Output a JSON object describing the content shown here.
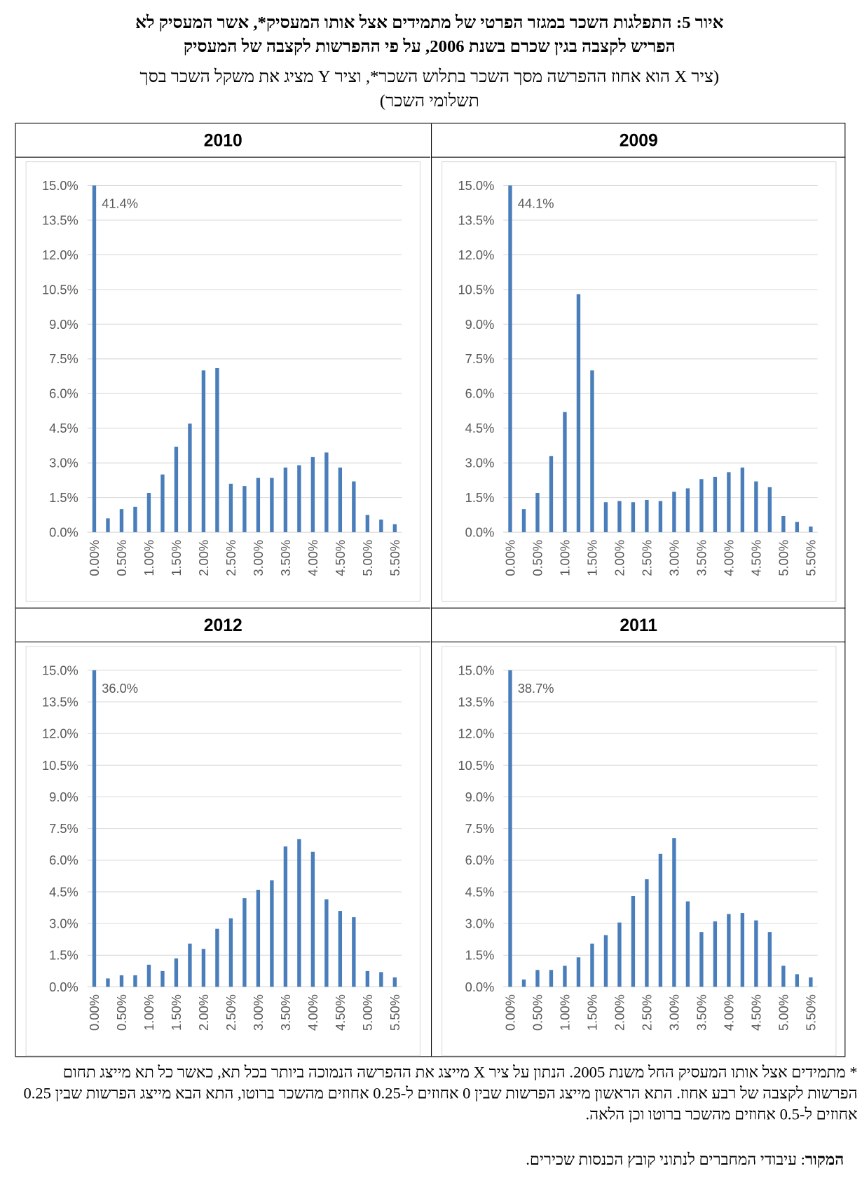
{
  "title_lines": [
    "איור 5: התפלגות השכר במגזר הפרטי של מתמידים אצל אותו המעסיק*, אשר המעסיק לא",
    "הפריש לקצבה בגין שכרם בשנת 2006, על פי ההפרשות לקצבה של המעסיק"
  ],
  "subtitle_lines": [
    "(ציר X הוא אחוז ההפרשה מסך השכר בתלוש השכר*, וציר Y מציג את משקל השכר בסך",
    "תשלומי השכר)"
  ],
  "chart_data": [
    {
      "type": "bar",
      "title": "2009",
      "color": "#4a7ebb",
      "grid": true,
      "categories": [
        "0.00%",
        null,
        "0.50%",
        null,
        "1.00%",
        null,
        "1.50%",
        null,
        "2.00%",
        null,
        "2.50%",
        null,
        "3.00%",
        null,
        "3.50%",
        null,
        "4.00%",
        null,
        "4.50%",
        null,
        "5.00%",
        null,
        "5.50%"
      ],
      "values": [
        44.1,
        1.0,
        1.7,
        3.3,
        5.2,
        10.3,
        7.0,
        1.3,
        1.35,
        1.3,
        1.4,
        1.35,
        1.75,
        1.9,
        2.3,
        2.4,
        2.6,
        2.8,
        2.2,
        1.95,
        0.7,
        0.45,
        0.25
      ],
      "value_labels": [
        "44.1%",
        null,
        null,
        null,
        null,
        null,
        null,
        null,
        null,
        null,
        null,
        null,
        null,
        null,
        null,
        null,
        null,
        null,
        null,
        null,
        null,
        null,
        null
      ],
      "ylim": [
        0,
        15
      ],
      "yticks": [
        {
          "value": 0,
          "label": "0.0%"
        },
        {
          "value": 1.5,
          "label": "1.5%"
        },
        {
          "value": 3,
          "label": "3.0%"
        },
        {
          "value": 4.5,
          "label": "4.5%"
        },
        {
          "value": 6,
          "label": "6.0%"
        },
        {
          "value": 7.5,
          "label": "7.5%"
        },
        {
          "value": 9,
          "label": "9.0%"
        },
        {
          "value": 10.5,
          "label": "10.5%"
        },
        {
          "value": 12,
          "label": "12.0%"
        },
        {
          "value": 13.5,
          "label": "13.5%"
        },
        {
          "value": 15,
          "label": "15.0%"
        }
      ]
    },
    {
      "type": "bar",
      "title": "2010",
      "color": "#4a7ebb",
      "grid": true,
      "categories": [
        "0.00%",
        null,
        "0.50%",
        null,
        "1.00%",
        null,
        "1.50%",
        null,
        "2.00%",
        null,
        "2.50%",
        null,
        "3.00%",
        null,
        "3.50%",
        null,
        "4.00%",
        null,
        "4.50%",
        null,
        "5.00%",
        null,
        "5.50%"
      ],
      "values": [
        41.4,
        0.6,
        1.0,
        1.1,
        1.7,
        2.5,
        3.7,
        4.7,
        7.0,
        7.1,
        2.1,
        2.0,
        2.35,
        2.35,
        2.8,
        2.9,
        3.25,
        3.45,
        2.8,
        2.2,
        0.75,
        0.55,
        0.35
      ],
      "value_labels": [
        "41.4%",
        null,
        null,
        null,
        null,
        null,
        null,
        null,
        null,
        null,
        null,
        null,
        null,
        null,
        null,
        null,
        null,
        null,
        null,
        null,
        null,
        null,
        null
      ],
      "ylim": [
        0,
        15
      ],
      "yticks": [
        {
          "value": 0,
          "label": "0.0%"
        },
        {
          "value": 1.5,
          "label": "1.5%"
        },
        {
          "value": 3,
          "label": "3.0%"
        },
        {
          "value": 4.5,
          "label": "4.5%"
        },
        {
          "value": 6,
          "label": "6.0%"
        },
        {
          "value": 7.5,
          "label": "7.5%"
        },
        {
          "value": 9,
          "label": "9.0%"
        },
        {
          "value": 10.5,
          "label": "10.5%"
        },
        {
          "value": 12,
          "label": "12.0%"
        },
        {
          "value": 13.5,
          "label": "13.5%"
        },
        {
          "value": 15,
          "label": "15.0%"
        }
      ]
    },
    {
      "type": "bar",
      "title": "2011",
      "color": "#4a7ebb",
      "grid": true,
      "categories": [
        "0.00%",
        null,
        "0.50%",
        null,
        "1.00%",
        null,
        "1.50%",
        null,
        "2.00%",
        null,
        "2.50%",
        null,
        "3.00%",
        null,
        "3.50%",
        null,
        "4.00%",
        null,
        "4.50%",
        null,
        "5.00%",
        null,
        "5.50%"
      ],
      "values": [
        38.7,
        0.35,
        0.8,
        0.8,
        1.0,
        1.4,
        2.05,
        2.45,
        3.05,
        4.3,
        5.1,
        6.3,
        7.05,
        4.05,
        2.6,
        3.1,
        3.45,
        3.5,
        3.15,
        2.6,
        1.0,
        0.6,
        0.45
      ],
      "value_labels": [
        "38.7%",
        null,
        null,
        null,
        null,
        null,
        null,
        null,
        null,
        null,
        null,
        null,
        null,
        null,
        null,
        null,
        null,
        null,
        null,
        null,
        null,
        null,
        null
      ],
      "ylim": [
        0,
        15
      ],
      "yticks": [
        {
          "value": 0,
          "label": "0.0%"
        },
        {
          "value": 1.5,
          "label": "1.5%"
        },
        {
          "value": 3,
          "label": "3.0%"
        },
        {
          "value": 4.5,
          "label": "4.5%"
        },
        {
          "value": 6,
          "label": "6.0%"
        },
        {
          "value": 7.5,
          "label": "7.5%"
        },
        {
          "value": 9,
          "label": "9.0%"
        },
        {
          "value": 10.5,
          "label": "10.5%"
        },
        {
          "value": 12,
          "label": "12.0%"
        },
        {
          "value": 13.5,
          "label": "13.5%"
        },
        {
          "value": 15,
          "label": "15.0%"
        }
      ]
    },
    {
      "type": "bar",
      "title": "2012",
      "color": "#4a7ebb",
      "grid": true,
      "categories": [
        "0.00%",
        null,
        "0.50%",
        null,
        "1.00%",
        null,
        "1.50%",
        null,
        "2.00%",
        null,
        "2.50%",
        null,
        "3.00%",
        null,
        "3.50%",
        null,
        "4.00%",
        null,
        "4.50%",
        null,
        "5.00%",
        null,
        "5.50%"
      ],
      "values": [
        36.0,
        0.4,
        0.55,
        0.55,
        1.05,
        0.75,
        1.35,
        2.05,
        1.8,
        2.75,
        3.25,
        4.2,
        4.6,
        5.05,
        6.65,
        7.0,
        6.4,
        4.15,
        3.6,
        3.3,
        0.75,
        0.7,
        0.45
      ],
      "value_labels": [
        "36.0%",
        null,
        null,
        null,
        null,
        null,
        null,
        null,
        null,
        null,
        null,
        null,
        null,
        null,
        null,
        null,
        null,
        null,
        null,
        null,
        null,
        null,
        null
      ],
      "ylim": [
        0,
        15
      ],
      "yticks": [
        {
          "value": 0,
          "label": "0.0%"
        },
        {
          "value": 1.5,
          "label": "1.5%"
        },
        {
          "value": 3,
          "label": "3.0%"
        },
        {
          "value": 4.5,
          "label": "4.5%"
        },
        {
          "value": 6,
          "label": "6.0%"
        },
        {
          "value": 7.5,
          "label": "7.5%"
        },
        {
          "value": 9,
          "label": "9.0%"
        },
        {
          "value": 10.5,
          "label": "10.5%"
        },
        {
          "value": 12,
          "label": "12.0%"
        },
        {
          "value": 13.5,
          "label": "13.5%"
        },
        {
          "value": 15,
          "label": "15.0%"
        }
      ]
    }
  ],
  "footnote": "* מתמידים אצל אותו המעסיק החל משנת 2005. הנתון על ציר X מייצג את ההפרשה הנמוכה ביותר בכל תא, כאשר כל תא מייצג תחום הפרשות לקצבה של רבע אחוז. התא הראשון מייצג הפרשות שבין 0 אחוזים ל-0.25 אחוזים מהשכר ברוטו, התא הבא מייצג הפרשות שבין 0.25 אחוזים ל-0.5 אחוזים מהשכר ברוטו וכן הלאה.",
  "source_label": "המקור",
  "source_text": ": עיבודי המחברים לנתוני קובץ הכנסות שכירים."
}
